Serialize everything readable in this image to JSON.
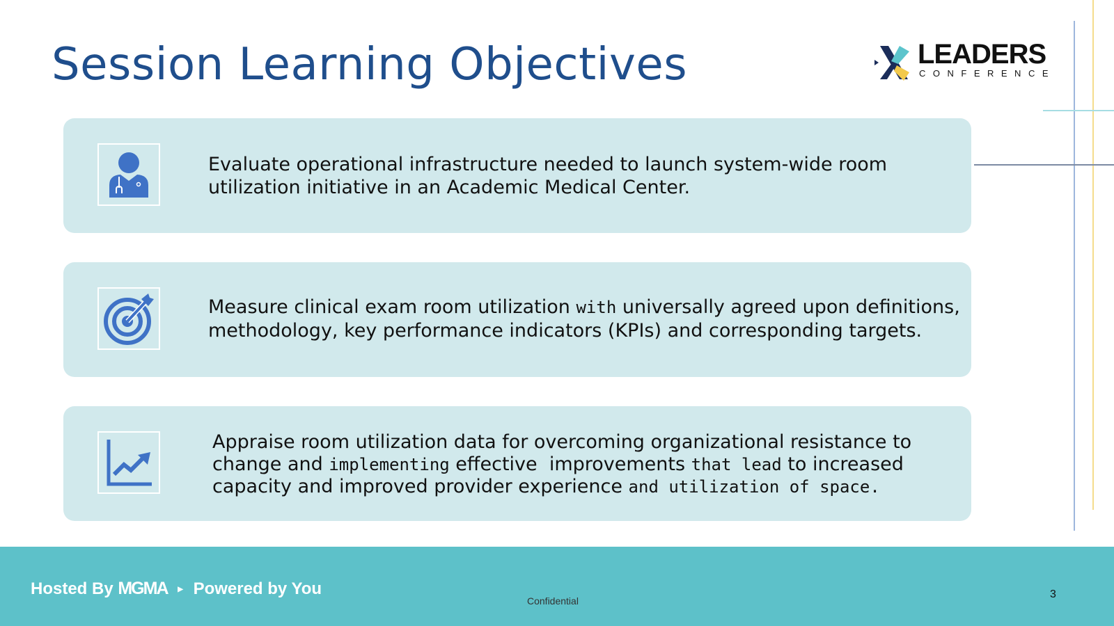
{
  "title": "Session Learning Objectives",
  "logo": {
    "word": "LEADERS",
    "sub": "CONFERENCE"
  },
  "objectives": [
    {
      "icon": "doctor-icon",
      "lines": [
        "Evaluate operational infrastructure needed to launch system-wide room",
        "utilization initiative in an Academic Medical Center."
      ]
    },
    {
      "icon": "target-icon",
      "a": "Measure clinical exam room utilization ",
      "b": "with",
      "c": " universally agreed upon definitions,",
      "line2": "methodology, key performance indicators (KPIs) and corresponding targets."
    },
    {
      "icon": "growth-chart-icon",
      "line1": "Appraise room utilization data for overcoming organizational resistance to",
      "l2a": "change and ",
      "l2b": "implementing",
      "l2c": " effective  improvements ",
      "l2d": "that lead",
      "l2e": " to increased",
      "l3a": "capacity and improved provider experience ",
      "l3b": "and utilization of space."
    }
  ],
  "footer": {
    "hosted": "Hosted By",
    "brand": "MGMA",
    "powered": "Powered by You",
    "confidential": "Confidential",
    "page": "3"
  },
  "colors": {
    "title": "#1f4e8c",
    "card": "#d1e9ec",
    "footer": "#5dc1c9",
    "icon": "#3f72c6"
  }
}
